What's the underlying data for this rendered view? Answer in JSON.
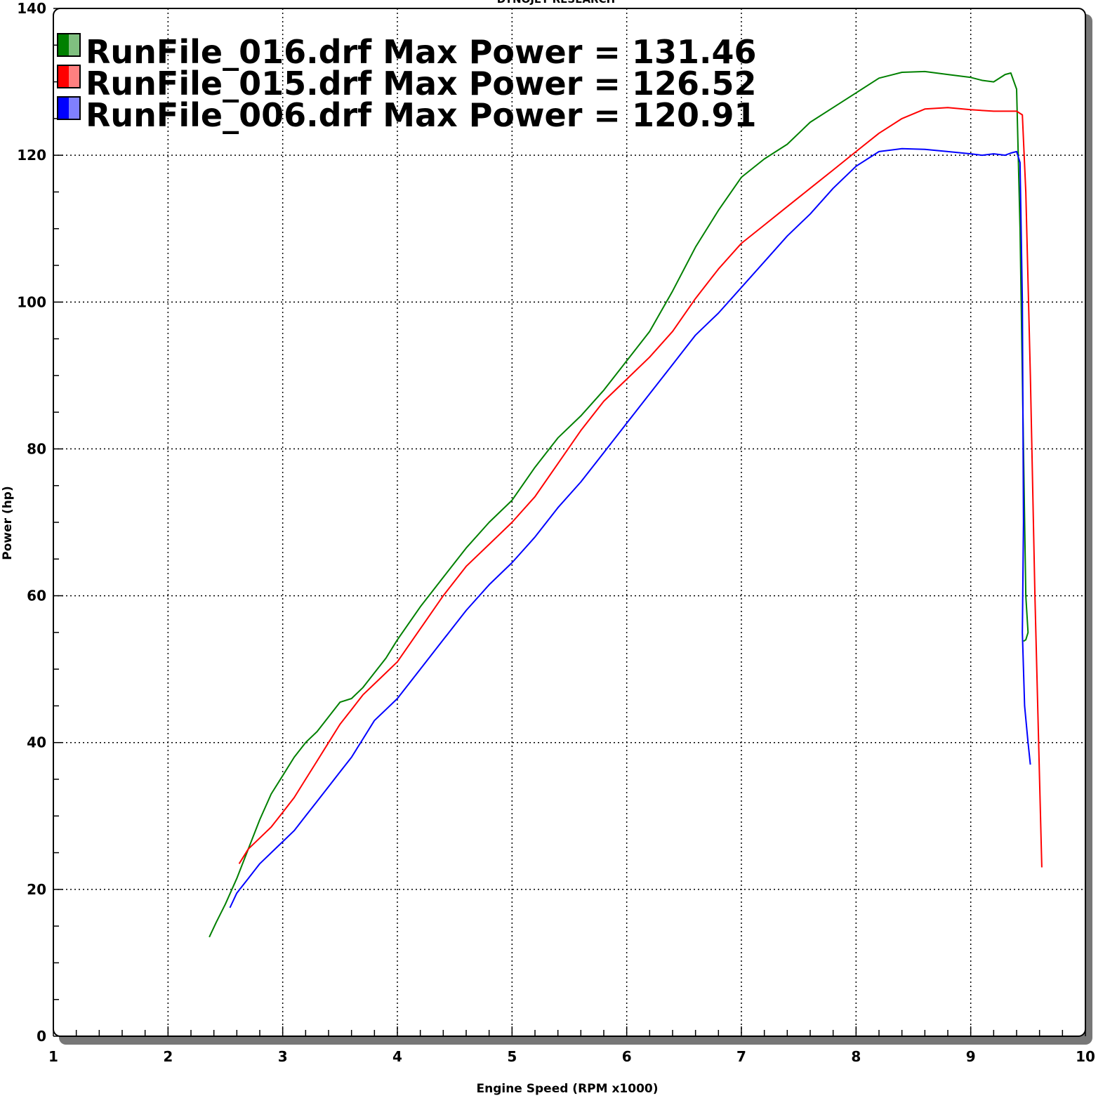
{
  "chart_data": {
    "type": "line",
    "header": "DYNOJET RESEARCH",
    "xlabel": "Engine Speed (RPM x1000)",
    "ylabel": "Power (hp)",
    "xlim": [
      1,
      10
    ],
    "ylim": [
      0,
      140
    ],
    "x_ticks": [
      "1",
      "2",
      "3",
      "4",
      "5",
      "6",
      "7",
      "8",
      "9",
      "10"
    ],
    "y_ticks": [
      "0",
      "20",
      "40",
      "60",
      "80",
      "100",
      "120",
      "140"
    ],
    "grid": true,
    "legend_position": "top-left",
    "series": [
      {
        "name": "RunFile_016.drf",
        "legend": "RunFile_016.drf Max Power = 131.46",
        "color": "#008000",
        "light_color": "#80c080",
        "x": [
          2.36,
          2.42,
          2.5,
          2.6,
          2.7,
          2.8,
          2.9,
          3.0,
          3.1,
          3.2,
          3.3,
          3.4,
          3.5,
          3.6,
          3.7,
          3.8,
          3.9,
          4.0,
          4.2,
          4.4,
          4.6,
          4.8,
          5.0,
          5.2,
          5.4,
          5.6,
          5.8,
          6.0,
          6.2,
          6.4,
          6.6,
          6.8,
          7.0,
          7.2,
          7.4,
          7.6,
          7.8,
          8.0,
          8.2,
          8.4,
          8.6,
          8.8,
          9.0,
          9.1,
          9.2,
          9.3,
          9.35,
          9.4,
          9.43,
          9.46,
          9.48,
          9.5,
          9.48,
          9.46
        ],
        "y": [
          13.5,
          15.5,
          18.0,
          21.5,
          25.5,
          29.5,
          33.0,
          35.5,
          38.0,
          40.0,
          41.5,
          43.5,
          45.5,
          46.0,
          47.5,
          49.5,
          51.5,
          54.0,
          58.5,
          62.5,
          66.5,
          70.0,
          73.0,
          77.5,
          81.5,
          84.5,
          88.0,
          92.0,
          96.0,
          101.5,
          107.5,
          112.5,
          117.0,
          119.5,
          121.5,
          124.5,
          126.5,
          128.5,
          130.5,
          131.3,
          131.4,
          131.0,
          130.6,
          130.2,
          130.0,
          131.0,
          131.2,
          129.0,
          110.0,
          80.0,
          60.0,
          55.0,
          54.0,
          53.8
        ]
      },
      {
        "name": "RunFile_015.drf",
        "legend": "RunFile_015.drf Max Power = 126.52",
        "color": "#ff0000",
        "light_color": "#ff8080",
        "x": [
          2.62,
          2.7,
          2.8,
          2.9,
          3.0,
          3.1,
          3.2,
          3.3,
          3.4,
          3.5,
          3.6,
          3.7,
          3.8,
          3.9,
          4.0,
          4.2,
          4.4,
          4.6,
          4.8,
          5.0,
          5.2,
          5.4,
          5.6,
          5.8,
          6.0,
          6.2,
          6.4,
          6.6,
          6.8,
          7.0,
          7.2,
          7.4,
          7.6,
          7.8,
          8.0,
          8.2,
          8.4,
          8.6,
          8.8,
          9.0,
          9.2,
          9.3,
          9.4,
          9.45,
          9.48,
          9.52,
          9.56,
          9.6,
          9.62
        ],
        "y": [
          23.5,
          25.5,
          27.0,
          28.5,
          30.5,
          32.5,
          35.0,
          37.5,
          40.0,
          42.5,
          44.5,
          46.5,
          48.0,
          49.5,
          51.0,
          55.5,
          60.0,
          64.0,
          67.0,
          70.0,
          73.5,
          78.0,
          82.5,
          86.5,
          89.5,
          92.5,
          96.0,
          100.5,
          104.5,
          108.0,
          110.5,
          113.0,
          115.5,
          118.0,
          120.5,
          123.0,
          125.0,
          126.3,
          126.5,
          126.2,
          126.0,
          126.0,
          126.0,
          125.5,
          115.0,
          90.0,
          60.0,
          35.0,
          23.0
        ]
      },
      {
        "name": "RunFile_006.drf",
        "legend": "RunFile_006.drf Max Power = 120.91",
        "color": "#0000ff",
        "light_color": "#8080ff",
        "x": [
          2.54,
          2.6,
          2.7,
          2.8,
          2.9,
          3.0,
          3.1,
          3.2,
          3.3,
          3.4,
          3.5,
          3.6,
          3.7,
          3.8,
          3.9,
          4.0,
          4.2,
          4.4,
          4.6,
          4.8,
          5.0,
          5.2,
          5.4,
          5.6,
          5.8,
          6.0,
          6.2,
          6.4,
          6.6,
          6.8,
          7.0,
          7.2,
          7.4,
          7.6,
          7.8,
          8.0,
          8.2,
          8.4,
          8.6,
          8.8,
          9.0,
          9.1,
          9.2,
          9.3,
          9.35,
          9.4,
          9.43,
          9.45,
          9.46,
          9.45,
          9.47,
          9.5,
          9.52
        ],
        "y": [
          17.5,
          19.5,
          21.5,
          23.5,
          25.0,
          26.5,
          28.0,
          30.0,
          32.0,
          34.0,
          36.0,
          38.0,
          40.5,
          43.0,
          44.5,
          46.0,
          50.0,
          54.0,
          58.0,
          61.5,
          64.5,
          68.0,
          72.0,
          75.5,
          79.5,
          83.5,
          87.5,
          91.5,
          95.5,
          98.5,
          102.0,
          105.5,
          109.0,
          112.0,
          115.5,
          118.5,
          120.5,
          120.9,
          120.8,
          120.5,
          120.2,
          120.0,
          120.2,
          120.0,
          120.3,
          120.5,
          119.0,
          100.0,
          70.0,
          55.0,
          45.0,
          40.0,
          37.0
        ]
      }
    ]
  }
}
